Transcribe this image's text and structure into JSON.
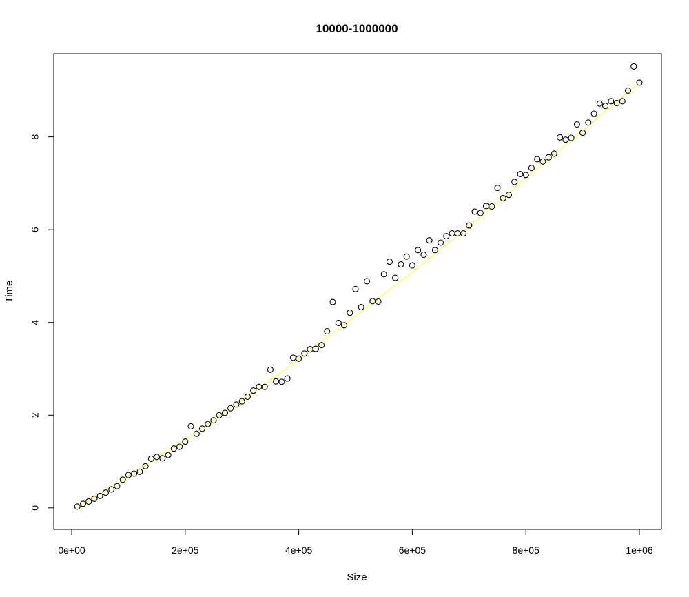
{
  "chart_data": {
    "type": "scatter",
    "title": "10000-1000000",
    "xlabel": "Size",
    "ylabel": "Time",
    "xlim": [
      0,
      1000000
    ],
    "ylim": [
      -0.3,
      9.6
    ],
    "xticks": [
      0,
      200000,
      400000,
      600000,
      800000,
      1000000
    ],
    "xtick_labels": [
      "0e+00",
      "2e+05",
      "4e+05",
      "6e+05",
      "8e+05",
      "1e+06"
    ],
    "yticks": [
      0,
      2,
      4,
      6,
      8
    ],
    "ytick_labels": [
      "0",
      "2",
      "4",
      "6",
      "8"
    ],
    "grid": false,
    "legend": "none",
    "point_color": "#000000",
    "fit_color": "#ffff66",
    "x": [
      10000,
      20000,
      30000,
      40000,
      50000,
      60000,
      70000,
      80000,
      90000,
      100000,
      110000,
      120000,
      130000,
      140000,
      150000,
      160000,
      170000,
      180000,
      190000,
      200000,
      210000,
      220000,
      230000,
      240000,
      250000,
      260000,
      270000,
      280000,
      290000,
      300000,
      310000,
      320000,
      330000,
      340000,
      350000,
      360000,
      370000,
      380000,
      390000,
      400000,
      410000,
      420000,
      430000,
      440000,
      450000,
      460000,
      470000,
      480000,
      490000,
      500000,
      510000,
      520000,
      530000,
      540000,
      550000,
      560000,
      570000,
      580000,
      590000,
      600000,
      610000,
      620000,
      630000,
      640000,
      650000,
      660000,
      670000,
      680000,
      690000,
      700000,
      710000,
      720000,
      730000,
      740000,
      750000,
      760000,
      770000,
      780000,
      790000,
      800000,
      810000,
      820000,
      830000,
      840000,
      850000,
      860000,
      870000,
      880000,
      890000,
      900000,
      910000,
      920000,
      930000,
      940000,
      950000,
      960000,
      970000,
      980000,
      990000,
      1000000
    ],
    "y": [
      0.03,
      0.09,
      0.14,
      0.2,
      0.26,
      0.33,
      0.4,
      0.47,
      0.61,
      0.71,
      0.74,
      0.78,
      0.9,
      1.06,
      1.1,
      1.07,
      1.14,
      1.28,
      1.32,
      1.43,
      1.76,
      1.6,
      1.71,
      1.81,
      1.89,
      2.0,
      2.05,
      2.15,
      2.23,
      2.3,
      2.4,
      2.53,
      2.61,
      2.61,
      2.98,
      2.73,
      2.72,
      2.79,
      3.24,
      3.22,
      3.33,
      3.42,
      3.43,
      3.51,
      3.81,
      4.44,
      3.99,
      3.94,
      4.21,
      4.72,
      4.33,
      4.89,
      4.46,
      4.45,
      5.04,
      5.31,
      4.96,
      5.25,
      5.42,
      5.23,
      5.56,
      5.46,
      5.77,
      5.56,
      5.72,
      5.86,
      5.92,
      5.92,
      5.92,
      6.09,
      6.39,
      6.36,
      6.51,
      6.5,
      6.9,
      6.68,
      6.75,
      7.03,
      7.2,
      7.18,
      7.33,
      7.52,
      7.47,
      7.56,
      7.64,
      7.99,
      7.94,
      7.98,
      8.27,
      8.09,
      8.31,
      8.5,
      8.72,
      8.67,
      8.77,
      8.73,
      8.77,
      9.0,
      9.52,
      9.17
    ],
    "fit": {
      "x": [
        10000,
        100000,
        200000,
        300000,
        400000,
        500000,
        600000,
        700000,
        800000,
        900000,
        1000000
      ],
      "y": [
        0.0,
        0.68,
        1.48,
        2.32,
        3.2,
        4.14,
        5.08,
        6.07,
        7.11,
        8.13,
        9.17
      ]
    }
  }
}
